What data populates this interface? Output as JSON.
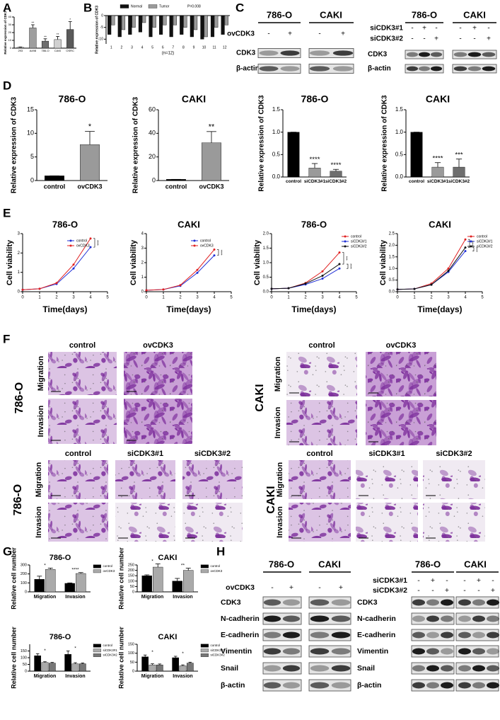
{
  "chart_data": [
    {
      "type": "bar",
      "ylabel": "Relative expression of CDK3",
      "categories": [
        "293",
        "A498",
        "786-O",
        "CAKI",
        "OSRC"
      ],
      "values": [
        1,
        26,
        9,
        11,
        24
      ],
      "errors": [
        0.5,
        4,
        3,
        4,
        10
      ],
      "annotations": [
        null,
        "**",
        "**",
        "**",
        "*"
      ],
      "colors": [
        "#bdbdbd",
        "#9e9e9e",
        "#6e6e6e",
        "#d0d0d0",
        "#5a5a5a"
      ],
      "ylim": [
        0,
        40
      ],
      "yticks": [
        0,
        10,
        20,
        30,
        40
      ]
    },
    {
      "type": "bar",
      "ylabel": "Relative expression of CDK3",
      "xlabel": "(n=12)",
      "annotation": "P=0.008",
      "categories": [
        "1",
        "2",
        "3",
        "4",
        "5",
        "6",
        "7",
        "8",
        "9",
        "10",
        "11",
        "12"
      ],
      "series": [
        {
          "name": "Normal",
          "color": "#111111",
          "values": [
            -8,
            -9,
            -8,
            -7,
            -9,
            -8,
            -9,
            -8,
            -9,
            -10,
            -9,
            -8
          ]
        },
        {
          "name": "Tumor",
          "color": "#9a9a9a",
          "values": [
            -4,
            -6,
            -5,
            -3,
            -5,
            -4,
            -4,
            -5,
            -6,
            -9,
            -5,
            -4
          ]
        }
      ],
      "ylim": [
        -12,
        0
      ],
      "yticks": [
        0,
        -5,
        -10
      ]
    },
    {
      "type": "bar",
      "title": "786-O",
      "ylabel": "Relative expression of CDK3",
      "categories": [
        "control",
        "ovCDK3"
      ],
      "values": [
        1,
        7.6
      ],
      "errors": [
        0,
        2.8
      ],
      "annotations": [
        null,
        "*"
      ],
      "colors": [
        "#000000",
        "#9a9a9a"
      ],
      "ylim": [
        0,
        15
      ],
      "yticks": [
        0,
        5,
        10,
        15
      ]
    },
    {
      "type": "bar",
      "title": "CAKI",
      "ylabel": "Relative expression of CDK3",
      "categories": [
        "control",
        "ovCDK3"
      ],
      "values": [
        1,
        32
      ],
      "errors": [
        0,
        9.5
      ],
      "annotations": [
        null,
        "**"
      ],
      "colors": [
        "#000000",
        "#9a9a9a"
      ],
      "ylim": [
        0,
        60
      ],
      "yticks": [
        0,
        20,
        40,
        60
      ]
    },
    {
      "type": "bar",
      "title": "786-O",
      "ylabel": "Relative expression of CDK3",
      "categories": [
        "control",
        "siCDK3#1",
        "siCDK3#2"
      ],
      "values": [
        1,
        0.2,
        0.13
      ],
      "errors": [
        0,
        0.1,
        0.04
      ],
      "annotations": [
        null,
        "****",
        "****"
      ],
      "colors": [
        "#000000",
        "#9a9a9a",
        "#6e6e6e"
      ],
      "ylim": [
        0,
        1.5
      ],
      "yticks": [
        {
          "value": 0,
          "label": "0.0"
        },
        {
          "value": 0.5,
          "label": "0.5"
        },
        {
          "value": 1,
          "label": "1.0"
        },
        {
          "value": 1.5,
          "label": "1.5"
        }
      ]
    },
    {
      "type": "bar",
      "title": "CAKI",
      "ylabel": "Relative expression of CDK3",
      "categories": [
        "control",
        "siCDK3#1",
        "siCDK3#2"
      ],
      "values": [
        1,
        0.22,
        0.22
      ],
      "errors": [
        0,
        0.1,
        0.18
      ],
      "annotations": [
        null,
        "****",
        "***"
      ],
      "colors": [
        "#000000",
        "#9a9a9a",
        "#6e6e6e"
      ],
      "ylim": [
        0,
        1.5
      ],
      "yticks": [
        {
          "value": 0,
          "label": "0.0"
        },
        {
          "value": 0.5,
          "label": "0.5"
        },
        {
          "value": 1,
          "label": "1.0"
        },
        {
          "value": 1.5,
          "label": "1.5"
        }
      ]
    },
    {
      "type": "line",
      "title": "786-O",
      "ylabel": "Cell viability",
      "xlabel": "Time(days)",
      "x": [
        0,
        1,
        2,
        3,
        4
      ],
      "series": [
        {
          "name": "control",
          "color": "#1f2fd6",
          "values": [
            0.1,
            0.15,
            0.4,
            1.2,
            2.3
          ]
        },
        {
          "name": "ovCDK3",
          "color": "#e02020",
          "values": [
            0.1,
            0.15,
            0.45,
            1.4,
            2.75
          ]
        }
      ],
      "annotations": [
        "****"
      ],
      "xlim": [
        0,
        5
      ],
      "xticks": [
        0,
        1,
        2,
        3,
        4,
        5
      ],
      "ylim": [
        0,
        3
      ],
      "yticks": [
        0,
        1,
        2,
        3
      ]
    },
    {
      "type": "line",
      "title": "CAKI",
      "ylabel": "Cell viability",
      "xlabel": "Time(days)",
      "x": [
        0,
        1,
        2,
        3,
        4
      ],
      "series": [
        {
          "name": "control",
          "color": "#1f2fd6",
          "values": [
            0.1,
            0.15,
            0.4,
            1.3,
            2.5
          ]
        },
        {
          "name": "ovCDK3",
          "color": "#e02020",
          "values": [
            0.1,
            0.15,
            0.45,
            1.5,
            2.9
          ]
        }
      ],
      "annotations": [
        "****"
      ],
      "xlim": [
        0,
        5
      ],
      "xticks": [
        0,
        1,
        2,
        3,
        4,
        5
      ],
      "ylim": [
        0,
        4
      ],
      "yticks": [
        0,
        1,
        2,
        3,
        4
      ]
    },
    {
      "type": "line",
      "title": "786-O",
      "ylabel": "Cell viability",
      "xlabel": "Time(days)",
      "x": [
        0,
        1,
        2,
        3,
        4
      ],
      "series": [
        {
          "name": "control",
          "color": "#e02020",
          "values": [
            0.1,
            0.12,
            0.3,
            0.7,
            1.35
          ]
        },
        {
          "name": "siCDK3#1",
          "color": "#1f2fd6",
          "values": [
            0.1,
            0.12,
            0.25,
            0.45,
            0.8
          ]
        },
        {
          "name": "siCDK3#2",
          "color": "#111111",
          "values": [
            0.1,
            0.12,
            0.28,
            0.55,
            0.95
          ]
        }
      ],
      "annotations": [
        "***",
        "****"
      ],
      "xlim": [
        0,
        5
      ],
      "xticks": [
        0,
        1,
        2,
        3,
        4,
        5
      ],
      "ylim": [
        0,
        2
      ],
      "yticks": [
        {
          "value": 0,
          "label": "0.0"
        },
        {
          "value": 0.5,
          "label": "0.5"
        },
        {
          "value": 1,
          "label": "1.0"
        },
        {
          "value": 1.5,
          "label": "1.5"
        },
        {
          "value": 2,
          "label": "2.0"
        }
      ]
    },
    {
      "type": "line",
      "title": "CAKI",
      "ylabel": "Cell viability",
      "xlabel": "Time(days)",
      "x": [
        0,
        1,
        2,
        3,
        4
      ],
      "series": [
        {
          "name": "control",
          "color": "#e02020",
          "values": [
            0.1,
            0.12,
            0.35,
            1.0,
            2.25
          ]
        },
        {
          "name": "siCDK3#1",
          "color": "#1f2fd6",
          "values": [
            0.1,
            0.12,
            0.3,
            0.85,
            1.75
          ]
        },
        {
          "name": "siCDK3#2",
          "color": "#111111",
          "values": [
            0.1,
            0.12,
            0.3,
            0.9,
            1.9
          ]
        }
      ],
      "annotations": [
        "****",
        "****"
      ],
      "xlim": [
        0,
        5
      ],
      "xticks": [
        0,
        1,
        2,
        3,
        4,
        5
      ],
      "ylim": [
        0,
        2.5
      ],
      "yticks": [
        {
          "value": 0,
          "label": "0.0"
        },
        {
          "value": 0.5,
          "label": "0.5"
        },
        {
          "value": 1,
          "label": "1.0"
        },
        {
          "value": 1.5,
          "label": "1.5"
        },
        {
          "value": 2,
          "label": "2.0"
        },
        {
          "value": 2.5,
          "label": "2.5"
        }
      ]
    },
    {
      "type": "bar",
      "title": "786-O",
      "ylabel": "Relative cell number",
      "categories": [
        "Migration",
        "Invasion"
      ],
      "series": [
        {
          "name": "control",
          "color": "#000000",
          "values": [
            140,
            95
          ],
          "errors": [
            35,
            5
          ]
        },
        {
          "name": "ovCDK3",
          "color": "#aaaaaa",
          "values": [
            250,
            205
          ],
          "errors": [
            15,
            10
          ]
        }
      ],
      "annotations": [
        "*",
        "****"
      ],
      "ylim": [
        0,
        300
      ],
      "yticks": [
        0,
        100,
        200,
        300
      ]
    },
    {
      "type": "bar",
      "title": "CAKI",
      "ylabel": "Relative cell number",
      "categories": [
        "Migration",
        "Invasion"
      ],
      "series": [
        {
          "name": "control",
          "color": "#000000",
          "values": [
            150,
            100
          ],
          "errors": [
            8,
            25
          ]
        },
        {
          "name": "ovCDK3",
          "color": "#aaaaaa",
          "values": [
            230,
            200
          ],
          "errors": [
            30,
            20
          ]
        }
      ],
      "annotations": [
        "*",
        "**"
      ],
      "ylim": [
        0,
        250
      ],
      "yticks": [
        0,
        50,
        100,
        150,
        200,
        250
      ]
    },
    {
      "type": "bar",
      "title": "786-O",
      "ylabel": "Relative cell number",
      "categories": [
        "Migration",
        "Invasion"
      ],
      "series": [
        {
          "name": "control",
          "color": "#000000",
          "values": [
            115,
            125
          ],
          "errors": [
            15,
            25
          ]
        },
        {
          "name": "siCDK3#1",
          "color": "#aaaaaa",
          "values": [
            65,
            55
          ],
          "errors": [
            5,
            8
          ]
        },
        {
          "name": "siCDK3#2",
          "color": "#777777",
          "values": [
            60,
            55
          ],
          "errors": [
            5,
            6
          ]
        }
      ],
      "annotations": [
        "*",
        "*"
      ],
      "ylim": [
        0,
        200
      ],
      "yticks": [
        0,
        50,
        100,
        150
      ]
    },
    {
      "type": "bar",
      "title": "CAKI",
      "ylabel": "Relative cell number",
      "categories": [
        "Migration",
        "Invasion"
      ],
      "series": [
        {
          "name": "control",
          "color": "#000000",
          "values": [
            80,
            75
          ],
          "errors": [
            10,
            8
          ]
        },
        {
          "name": "siCDK3#1",
          "color": "#aaaaaa",
          "values": [
            35,
            30
          ],
          "errors": [
            6,
            5
          ]
        },
        {
          "name": "siCDK3#2",
          "color": "#777777",
          "values": [
            35,
            45
          ],
          "errors": [
            5,
            5
          ]
        }
      ],
      "annotations": [
        "*",
        "*"
      ],
      "ylim": [
        0,
        150
      ],
      "yticks": [
        0,
        50,
        100,
        150
      ]
    }
  ],
  "figure": {
    "panel_labels": [
      "A",
      "B",
      "C",
      "D",
      "E",
      "F",
      "G",
      "H"
    ],
    "blots": [
      {
        "cell_lines": [
          "786-O",
          "CAKI"
        ],
        "treatments": [
          {
            "name": "ovCDK3",
            "signs": [
              "-",
              "+",
              "-",
              "+"
            ]
          }
        ],
        "rows": [
          "CDK3",
          "β-actin"
        ]
      },
      {
        "cell_lines": [
          "786-O",
          "CAKI"
        ],
        "treatments": [
          {
            "name": "siCDK3#1",
            "signs": [
              "-",
              "+",
              "-",
              "-",
              "+",
              "-"
            ]
          },
          {
            "name": "siCDK3#2",
            "signs": [
              "-",
              "-",
              "+",
              "-",
              "-",
              "+"
            ]
          }
        ],
        "rows": [
          "CDK3",
          "β-actin"
        ]
      },
      {
        "cell_lines": [
          "786-O",
          "CAKI"
        ],
        "treatments": [
          {
            "name": "ovCDK3",
            "signs": [
              "-",
              "+",
              "-",
              "+"
            ]
          }
        ],
        "rows": [
          "CDK3",
          "N-cadherin",
          "E-cadherin",
          "Vimentin",
          "Snail",
          "β-actin"
        ]
      },
      {
        "cell_lines": [
          "786-O",
          "CAKI"
        ],
        "treatments": [
          {
            "name": "siCDK3#1",
            "signs": [
              "-",
              "+",
              "-",
              "-",
              "+",
              "-"
            ]
          },
          {
            "name": "siCDK3#2",
            "signs": [
              "-",
              "-",
              "+",
              "-",
              "-",
              "+"
            ]
          }
        ],
        "rows": [
          "CDK3",
          "N-cadherin",
          "E-cadherin",
          "Vimentin",
          "Snail",
          "β-actin"
        ]
      }
    ],
    "micrographs": [
      {
        "cell_line": "786-O",
        "columns": [
          "control",
          "ovCDK3"
        ],
        "rows": [
          "Migration",
          "Invasion"
        ]
      },
      {
        "cell_line": "CAKI",
        "columns": [
          "control",
          "ovCDK3"
        ],
        "rows": [
          "Migration",
          "Invasion"
        ]
      },
      {
        "cell_line": "786-O",
        "columns": [
          "control",
          "siCDK3#1",
          "siCDK3#2"
        ],
        "rows": [
          "Migration",
          "Invasion"
        ]
      },
      {
        "cell_line": "CAKI",
        "columns": [
          "control",
          "siCDK3#1",
          "siCDK3#2"
        ],
        "rows": [
          "Migration",
          "Invasion"
        ]
      }
    ]
  }
}
